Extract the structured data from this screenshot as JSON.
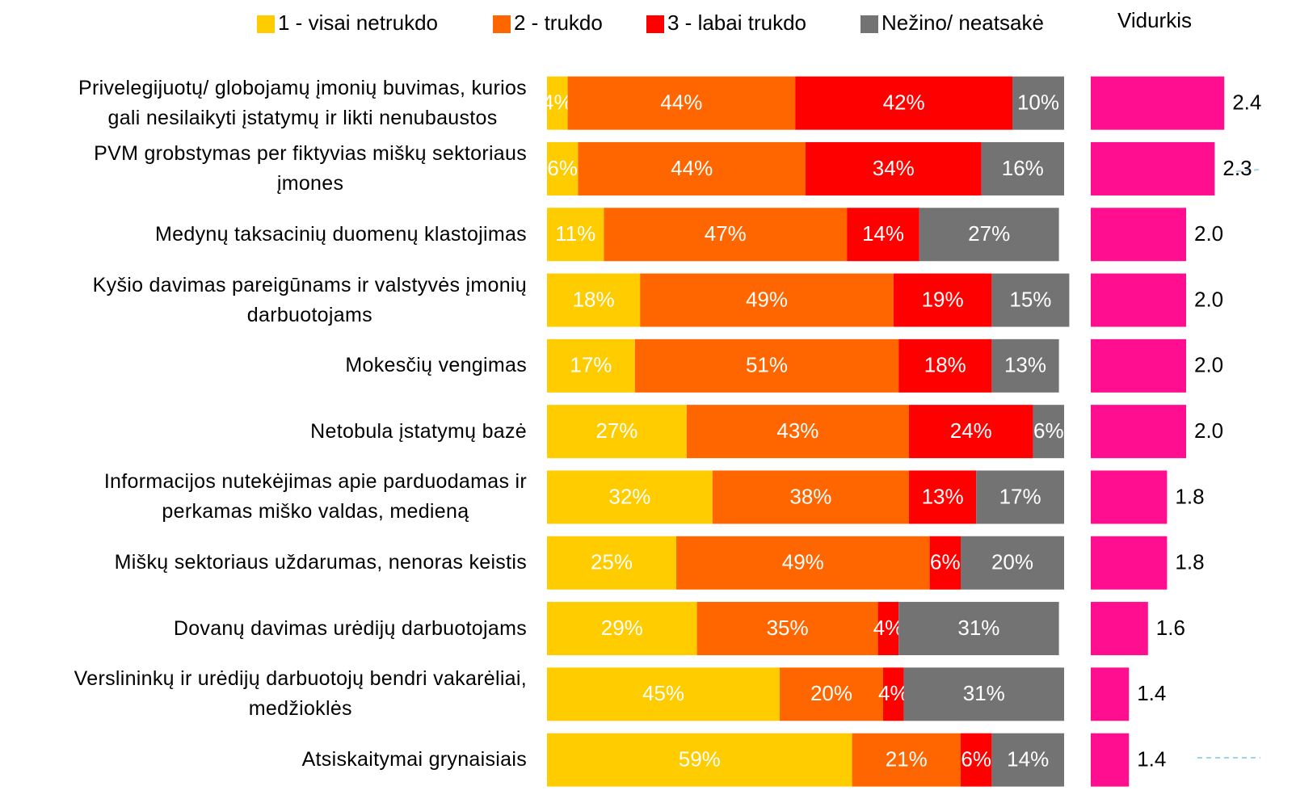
{
  "chart_data": [
    {
      "type": "bar",
      "stacked": true,
      "orientation": "horizontal",
      "legend": "top",
      "categories": [
        "Privelegijuotų/ globojamų įmonių buvimas, kurios\ngali nesilaikyti įstatymų ir likti nenubaustos",
        "PVM grobstymas per fiktyvias miškų sektoriaus\nįmones",
        "Medynų taksacinių duomenų klastojimas",
        "Kyšio davimas pareigūnams ir valstyvės įmonių\ndarbuotojams",
        "Mokesčių vengimas",
        "Netobula įstatymų bazė",
        "Informacijos nutekėjimas apie parduodamas ir\nperkamas miško valdas, medieną",
        "Miškų sektoriaus uždarumas, nenoras keistis",
        "Dovanų davimas urėdijų darbuotojams",
        "Verslininkų ir urėdijų darbuotojų bendri vakarėliai,\nmedžioklės",
        "Atsiskaitymai grynaisiais"
      ],
      "xlim": [
        0,
        100
      ],
      "series": [
        {
          "name": "1 - visai netrukdo",
          "color": "#ffcc00",
          "values": [
            4,
            6,
            11,
            18,
            17,
            27,
            32,
            25,
            29,
            45,
            59
          ],
          "value_labels": [
            "4%",
            "6%",
            "11%",
            "18%",
            "17%",
            "27%",
            "32%",
            "25%",
            "29%",
            "45%",
            "59%"
          ]
        },
        {
          "name": "2 - trukdo",
          "color": "#ff6600",
          "values": [
            44,
            44,
            47,
            49,
            51,
            43,
            38,
            49,
            35,
            20,
            21
          ],
          "value_labels": [
            "44%",
            "44%",
            "47%",
            "49%",
            "51%",
            "43%",
            "38%",
            "49%",
            "35%",
            "20%",
            "21%"
          ]
        },
        {
          "name": "3 - labai trukdo",
          "color": "#ff0000",
          "values": [
            42,
            34,
            14,
            19,
            18,
            24,
            13,
            6,
            4,
            4,
            6
          ],
          "value_labels": [
            "42%",
            "34%",
            "14%",
            "19%",
            "18%",
            "24%",
            "13%",
            "6%",
            "4%",
            "4%",
            "6%"
          ]
        },
        {
          "name": "Nežino/ neatsakė",
          "color": "#737373",
          "values": [
            10,
            16,
            27,
            15,
            13,
            6,
            17,
            20,
            31,
            31,
            14
          ],
          "value_labels": [
            "10%",
            "16%",
            "27%",
            "15%",
            "13%",
            "6%",
            "17%",
            "20%",
            "31%",
            "31%",
            "14%"
          ]
        }
      ]
    },
    {
      "type": "bar",
      "orientation": "horizontal",
      "title": "Vidurkis",
      "color": "#ff0f8f",
      "xlim": [
        1,
        3
      ],
      "values": [
        2.4,
        2.3,
        2.0,
        2.0,
        2.0,
        2.0,
        1.8,
        1.8,
        1.6,
        1.4,
        1.4
      ],
      "value_labels": [
        "2.4",
        "2.3",
        "2.0",
        "2.0",
        "2.0",
        "2.0",
        "1.8",
        "1.8",
        "1.6",
        "1.4",
        "1.4"
      ]
    }
  ]
}
